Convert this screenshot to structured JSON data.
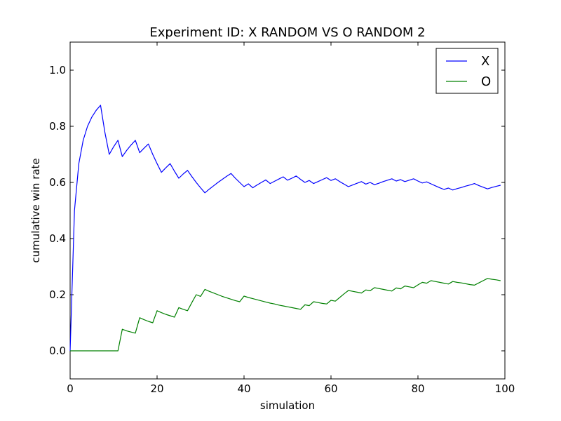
{
  "chart_data": {
    "type": "line",
    "title": "Experiment ID: X RANDOM VS O RANDOM 2",
    "xlabel": "simulation",
    "ylabel": "cumulative win rate",
    "xlim": [
      0,
      100
    ],
    "ylim": [
      -0.1,
      1.1
    ],
    "xticks": [
      "0",
      "20",
      "40",
      "60",
      "80",
      "100"
    ],
    "yticks": [
      "0.0",
      "0.2",
      "0.4",
      "0.6",
      "0.8",
      "1.0"
    ],
    "grid": false,
    "legend_position": "top-right",
    "series": [
      {
        "name": "X",
        "color": "#0000ff",
        "x": [
          0,
          1,
          2,
          3,
          4,
          5,
          6,
          7,
          8,
          9,
          10,
          11,
          12,
          13,
          14,
          15,
          16,
          17,
          18,
          19,
          20,
          21,
          22,
          23,
          24,
          25,
          26,
          27,
          28,
          29,
          30,
          31,
          32,
          33,
          34,
          35,
          36,
          37,
          38,
          39,
          40,
          41,
          42,
          43,
          44,
          45,
          46,
          47,
          48,
          49,
          50,
          51,
          52,
          53,
          54,
          55,
          56,
          57,
          58,
          59,
          60,
          61,
          62,
          63,
          64,
          65,
          66,
          67,
          68,
          69,
          70,
          71,
          72,
          73,
          74,
          75,
          76,
          77,
          78,
          79,
          80,
          81,
          82,
          83,
          84,
          85,
          86,
          87,
          88,
          89,
          90,
          91,
          92,
          93,
          94,
          95,
          96,
          97,
          98,
          99
        ],
        "y": [
          0.0,
          0.5,
          0.667,
          0.75,
          0.8,
          0.833,
          0.857,
          0.875,
          0.778,
          0.7,
          0.727,
          0.75,
          0.692,
          0.714,
          0.733,
          0.75,
          0.706,
          0.722,
          0.737,
          0.7,
          0.667,
          0.636,
          0.652,
          0.667,
          0.64,
          0.615,
          0.63,
          0.643,
          0.621,
          0.6,
          0.581,
          0.563,
          0.576,
          0.588,
          0.6,
          0.611,
          0.622,
          0.632,
          0.615,
          0.6,
          0.585,
          0.595,
          0.581,
          0.591,
          0.6,
          0.609,
          0.596,
          0.604,
          0.612,
          0.62,
          0.608,
          0.615,
          0.623,
          0.611,
          0.6,
          0.607,
          0.596,
          0.603,
          0.61,
          0.617,
          0.607,
          0.613,
          0.603,
          0.594,
          0.585,
          0.591,
          0.597,
          0.603,
          0.594,
          0.6,
          0.592,
          0.597,
          0.603,
          0.608,
          0.613,
          0.605,
          0.61,
          0.603,
          0.608,
          0.613,
          0.605,
          0.598,
          0.602,
          0.595,
          0.588,
          0.581,
          0.575,
          0.58,
          0.573,
          0.578,
          0.582,
          0.587,
          0.591,
          0.596,
          0.589,
          0.583,
          0.577,
          0.582,
          0.586,
          0.59
        ]
      },
      {
        "name": "O",
        "color": "#008000",
        "x": [
          0,
          1,
          2,
          3,
          4,
          5,
          6,
          7,
          8,
          9,
          10,
          11,
          12,
          13,
          14,
          15,
          16,
          17,
          18,
          19,
          20,
          21,
          22,
          23,
          24,
          25,
          26,
          27,
          28,
          29,
          30,
          31,
          32,
          33,
          34,
          35,
          36,
          37,
          38,
          39,
          40,
          41,
          42,
          43,
          44,
          45,
          46,
          47,
          48,
          49,
          50,
          51,
          52,
          53,
          54,
          55,
          56,
          57,
          58,
          59,
          60,
          61,
          62,
          63,
          64,
          65,
          66,
          67,
          68,
          69,
          70,
          71,
          72,
          73,
          74,
          75,
          76,
          77,
          78,
          79,
          80,
          81,
          82,
          83,
          84,
          85,
          86,
          87,
          88,
          89,
          90,
          91,
          92,
          93,
          94,
          95,
          96,
          97,
          98,
          99
        ],
        "y": [
          0.0,
          0.0,
          0.0,
          0.0,
          0.0,
          0.0,
          0.0,
          0.0,
          0.0,
          0.0,
          0.0,
          0.0,
          0.077,
          0.071,
          0.067,
          0.063,
          0.118,
          0.111,
          0.105,
          0.1,
          0.143,
          0.136,
          0.13,
          0.125,
          0.12,
          0.154,
          0.148,
          0.143,
          0.172,
          0.2,
          0.194,
          0.219,
          0.212,
          0.206,
          0.2,
          0.194,
          0.189,
          0.184,
          0.179,
          0.175,
          0.195,
          0.19,
          0.186,
          0.182,
          0.178,
          0.174,
          0.17,
          0.167,
          0.163,
          0.16,
          0.157,
          0.154,
          0.151,
          0.148,
          0.164,
          0.161,
          0.175,
          0.172,
          0.169,
          0.167,
          0.18,
          0.177,
          0.19,
          0.203,
          0.215,
          0.212,
          0.209,
          0.206,
          0.217,
          0.214,
          0.225,
          0.222,
          0.219,
          0.216,
          0.213,
          0.224,
          0.221,
          0.231,
          0.228,
          0.225,
          0.235,
          0.244,
          0.241,
          0.25,
          0.247,
          0.244,
          0.241,
          0.238,
          0.247,
          0.244,
          0.242,
          0.239,
          0.236,
          0.234,
          0.242,
          0.25,
          0.258,
          0.255,
          0.253,
          0.25
        ]
      }
    ]
  }
}
